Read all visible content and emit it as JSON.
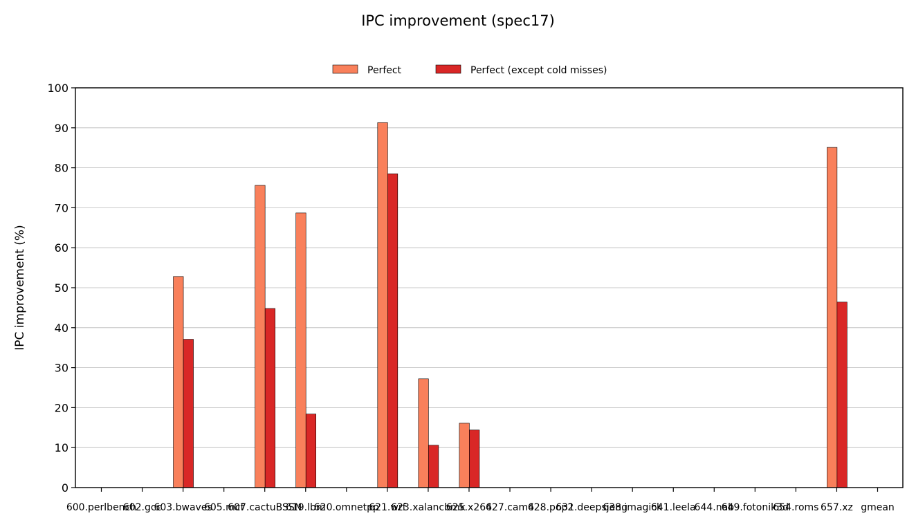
{
  "colors": {
    "perfect": "#f9805b",
    "perfect_except_cold": "#d92726",
    "grid": "#b8b8b8",
    "axis": "#000000"
  },
  "chart_data": {
    "type": "bar",
    "title": "IPC improvement (spec17)",
    "xlabel": "",
    "ylabel": "IPC improvement (%)",
    "ylim": [
      0,
      100
    ],
    "yticks": [
      0,
      10,
      20,
      30,
      40,
      50,
      60,
      70,
      80,
      90,
      100
    ],
    "grid": "horizontal",
    "legend_position": "top-center",
    "categories": [
      "600.perlbench",
      "602.gcc",
      "603.bwaves",
      "605.mcf",
      "607.cactuBSSN",
      "619.lbm",
      "620.omnetpp",
      "621.wrf",
      "623.xalancbmk",
      "625.x264",
      "627.cam4",
      "628.pop2",
      "631.deepsjeng",
      "638.imagick",
      "641.leela",
      "644.nab",
      "649.fotonik3d",
      "654.roms",
      "657.xz",
      "gmean"
    ],
    "series": [
      {
        "name": "Perfect",
        "color_key": "perfect",
        "values": [
          0,
          52.8,
          0,
          75.6,
          68.7,
          0,
          91.3,
          27.2,
          16.1,
          0,
          0,
          0,
          0,
          0,
          0,
          0,
          0,
          85.1,
          0,
          0
        ]
      },
      {
        "name": "Perfect (except cold misses)",
        "color_key": "perfect_except_cold",
        "values": [
          0,
          37.1,
          0,
          44.8,
          18.4,
          0,
          78.5,
          10.6,
          14.4,
          0,
          0,
          0,
          0,
          0,
          0,
          0,
          0,
          46.4,
          0,
          0
        ]
      }
    ]
  }
}
